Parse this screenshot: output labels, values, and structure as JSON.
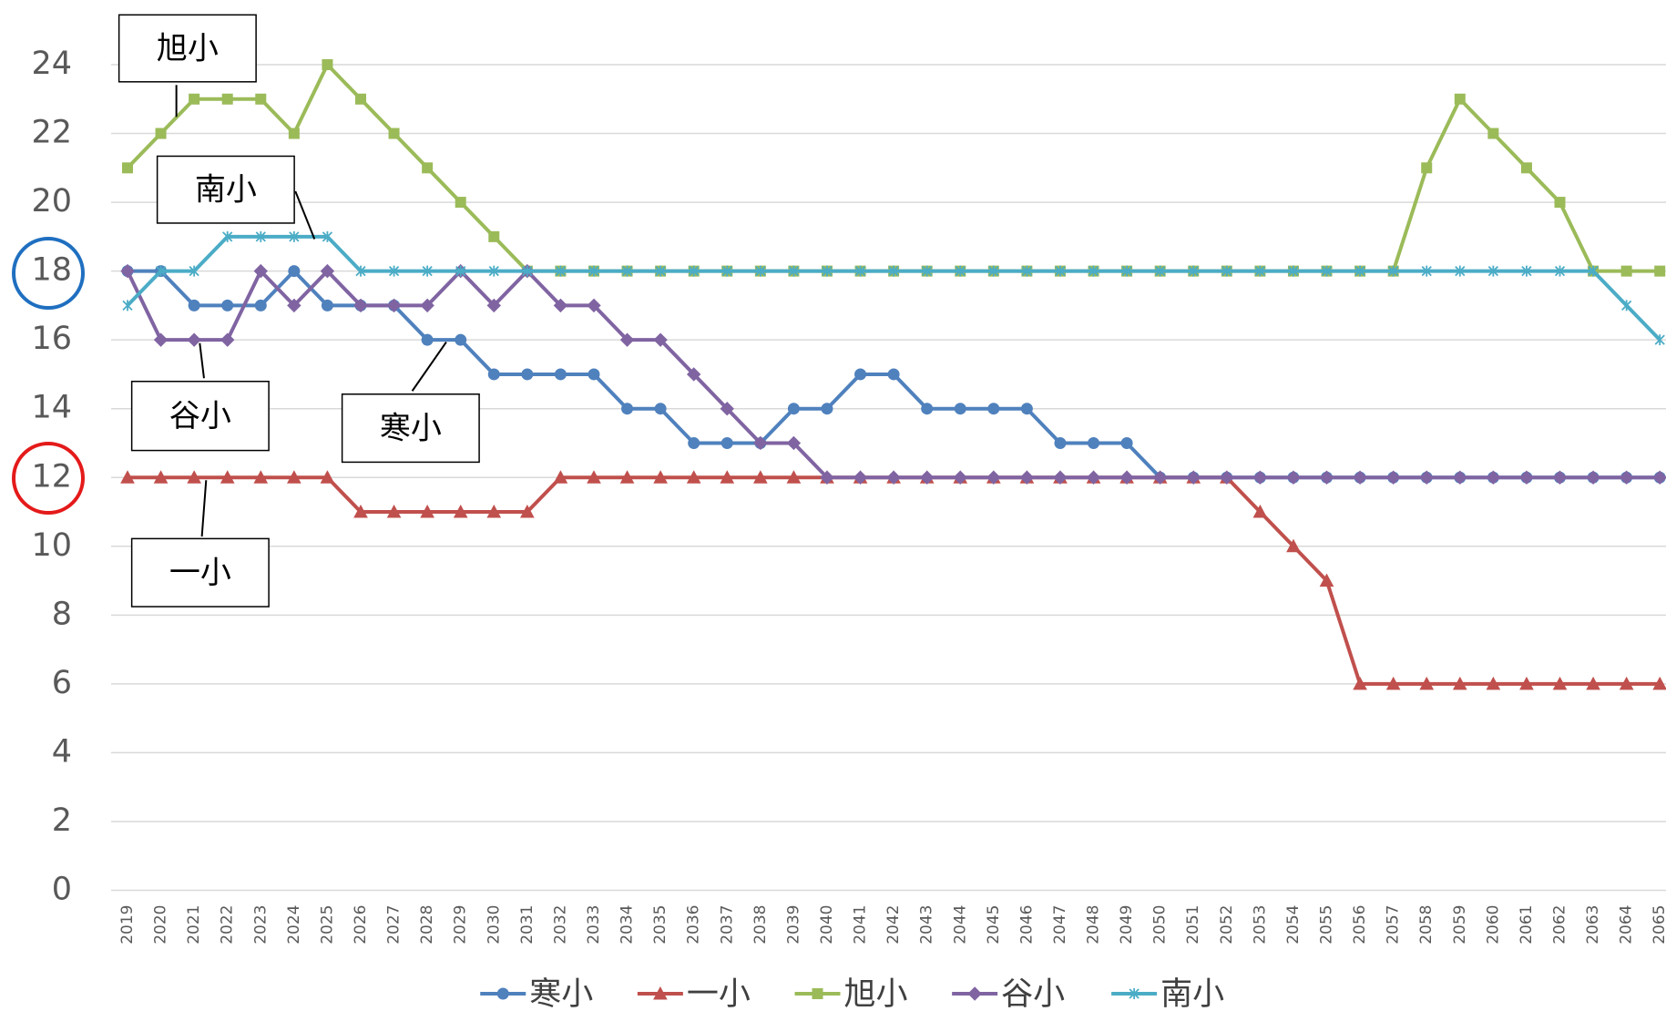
{
  "chart_data": {
    "type": "line",
    "categories": [
      "2019",
      "2020",
      "2021",
      "2022",
      "2023",
      "2024",
      "2025",
      "2026",
      "2027",
      "2028",
      "2029",
      "2030",
      "2031",
      "2032",
      "2033",
      "2034",
      "2035",
      "2036",
      "2037",
      "2038",
      "2039",
      "2040",
      "2041",
      "2042",
      "2043",
      "2044",
      "2045",
      "2046",
      "2047",
      "2048",
      "2049",
      "2050",
      "2051",
      "2052",
      "2053",
      "2054",
      "2055",
      "2056",
      "2057",
      "2058",
      "2059",
      "2060",
      "2061",
      "2062",
      "2063",
      "2064",
      "2065"
    ],
    "series": [
      {
        "name": "寒小",
        "color": "#4f81bd",
        "marker": "circle",
        "values": [
          18,
          18,
          17,
          17,
          17,
          18,
          17,
          17,
          17,
          16,
          16,
          15,
          15,
          15,
          15,
          14,
          14,
          13,
          13,
          13,
          14,
          14,
          15,
          15,
          14,
          14,
          14,
          14,
          13,
          13,
          13,
          12,
          12,
          12,
          12,
          12,
          12,
          12,
          12,
          12,
          12,
          12,
          12,
          12,
          12,
          12,
          12
        ]
      },
      {
        "name": "一小",
        "color": "#c0504d",
        "marker": "triangle",
        "values": [
          12,
          12,
          12,
          12,
          12,
          12,
          12,
          11,
          11,
          11,
          11,
          11,
          11,
          12,
          12,
          12,
          12,
          12,
          12,
          12,
          12,
          12,
          12,
          12,
          12,
          12,
          12,
          12,
          12,
          12,
          12,
          12,
          12,
          12,
          11,
          10,
          9,
          6,
          6,
          6,
          6,
          6,
          6,
          6,
          6,
          6,
          6
        ]
      },
      {
        "name": "旭小",
        "color": "#9bbb59",
        "marker": "square",
        "values": [
          21,
          22,
          23,
          23,
          23,
          22,
          24,
          23,
          22,
          21,
          20,
          19,
          18,
          18,
          18,
          18,
          18,
          18,
          18,
          18,
          18,
          18,
          18,
          18,
          18,
          18,
          18,
          18,
          18,
          18,
          18,
          18,
          18,
          18,
          18,
          18,
          18,
          18,
          18,
          21,
          23,
          22,
          21,
          20,
          18,
          18,
          18
        ]
      },
      {
        "name": "谷小",
        "color": "#8064a2",
        "marker": "diamond",
        "values": [
          18,
          16,
          16,
          16,
          18,
          17,
          18,
          17,
          17,
          17,
          18,
          17,
          18,
          17,
          17,
          16,
          16,
          15,
          14,
          13,
          13,
          12,
          12,
          12,
          12,
          12,
          12,
          12,
          12,
          12,
          12,
          12,
          12,
          12,
          12,
          12,
          12,
          12,
          12,
          12,
          12,
          12,
          12,
          12,
          12,
          12,
          12
        ]
      },
      {
        "name": "南小",
        "color": "#4bacc6",
        "marker": "star",
        "values": [
          17,
          18,
          18,
          19,
          19,
          19,
          19,
          18,
          18,
          18,
          18,
          18,
          18,
          18,
          18,
          18,
          18,
          18,
          18,
          18,
          18,
          18,
          18,
          18,
          18,
          18,
          18,
          18,
          18,
          18,
          18,
          18,
          18,
          18,
          18,
          18,
          18,
          18,
          18,
          18,
          18,
          18,
          18,
          18,
          18,
          17,
          16
        ]
      }
    ],
    "ylim": [
      0,
      24
    ],
    "yticks": [
      0,
      2,
      4,
      6,
      8,
      10,
      12,
      14,
      16,
      18,
      20,
      22,
      24
    ],
    "grid": true,
    "legend": "bottom",
    "annotations": [
      "旭小",
      "南小",
      "谷小",
      "寒小",
      "一小"
    ]
  }
}
